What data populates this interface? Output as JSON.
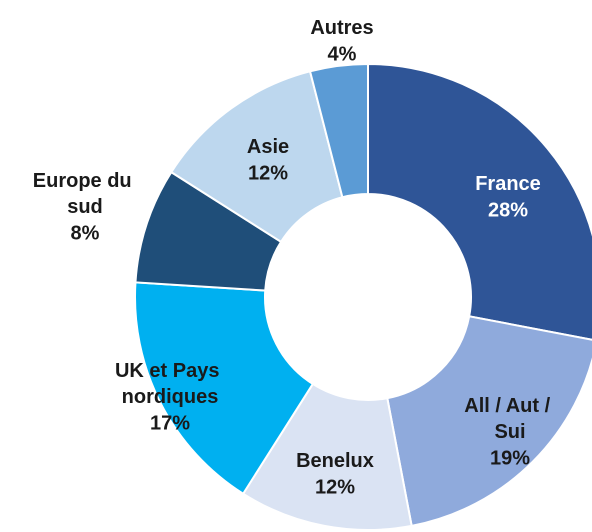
{
  "chart_data": {
    "type": "donut",
    "categories": [
      "France",
      "All / Aut / Sui",
      "Benelux",
      "UK et Pays nordiques",
      "Europe du sud",
      "Asie",
      "Autres"
    ],
    "values": [
      28,
      19,
      12,
      17,
      8,
      12,
      4
    ],
    "value_labels": [
      "28%",
      "19%",
      "12%",
      "17%",
      "8%",
      "12%",
      "4%"
    ],
    "colors": [
      "#2f5597",
      "#8faadc",
      "#dae3f3",
      "#00b0f0",
      "#1f4e79",
      "#bdd7ee",
      "#5b9bd5"
    ]
  }
}
